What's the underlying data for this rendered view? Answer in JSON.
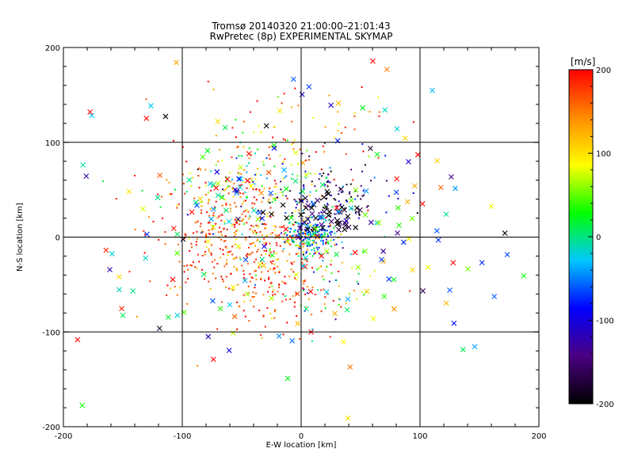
{
  "chart_data": {
    "type": "scatter",
    "title": "Tromsø 20140320 21:00:00–21:01:43",
    "subtitle": "RwPretec (8p) EXPERIMENTAL SKYMAP",
    "xlabel": "E-W location [km]",
    "ylabel": "N-S location [km]",
    "xlim": [
      -200,
      200
    ],
    "ylim": [
      -200,
      200
    ],
    "xticks": [
      -200,
      -100,
      0,
      100,
      200
    ],
    "yticks": [
      -200,
      -100,
      0,
      100,
      200
    ],
    "grid": true,
    "colorbar": {
      "label": "[m/s]",
      "range": [
        -200,
        200
      ],
      "ticks": [
        200,
        100,
        0,
        -100,
        -200
      ],
      "colormap": [
        "#000000",
        "#4b0082",
        "#0000ff",
        "#00c8ff",
        "#00ff00",
        "#ffff00",
        "#ff8c00",
        "#ff0000"
      ]
    },
    "series": [
      {
        "marker": "dot",
        "clusters": [
          {
            "center": [
              8,
              3
            ],
            "spread": [
              10,
              10
            ],
            "count": 230,
            "v_mean": -40,
            "v_sd": 60
          },
          {
            "center": [
              -70,
              5
            ],
            "spread": [
              30,
              35
            ],
            "count": 260,
            "v_mean": 175,
            "v_sd": 35
          },
          {
            "center": [
              -20,
              -40
            ],
            "spread": [
              22,
              30
            ],
            "count": 150,
            "v_mean": 170,
            "v_sd": 40
          },
          {
            "center": [
              -35,
              55
            ],
            "spread": [
              35,
              25
            ],
            "count": 160,
            "v_mean": 60,
            "v_sd": 90
          },
          {
            "center": [
              30,
              40
            ],
            "spread": [
              25,
              20
            ],
            "count": 110,
            "v_mean": -150,
            "v_sd": 60
          },
          {
            "center": [
              -10,
              120
            ],
            "spread": [
              40,
              20
            ],
            "count": 60,
            "v_mean": 160,
            "v_sd": 60
          },
          {
            "center": [
              20,
              -50
            ],
            "spread": [
              25,
              25
            ],
            "count": 70,
            "v_mean": 20,
            "v_sd": 90
          },
          {
            "center": [
              -40,
              10
            ],
            "spread": [
              25,
              20
            ],
            "count": 80,
            "v_mean": 120,
            "v_sd": 60
          }
        ]
      },
      {
        "marker": "x",
        "clusters": [
          {
            "center": [
              20,
              25
            ],
            "spread": [
              20,
              15
            ],
            "count": 45,
            "v_mean": -180,
            "v_sd": 40
          },
          {
            "center": [
              0,
              10
            ],
            "spread": [
              60,
              60
            ],
            "count": 70,
            "v_mean": 0,
            "v_sd": 120
          },
          {
            "center": [
              -60,
              60
            ],
            "spread": [
              20,
              25
            ],
            "count": 20,
            "v_mean": 0,
            "v_sd": 60
          },
          {
            "center": [
              0,
              0
            ],
            "spread": [
              100,
              100
            ],
            "count": 140,
            "v_mean": 60,
            "v_sd": 120
          }
        ]
      }
    ]
  }
}
